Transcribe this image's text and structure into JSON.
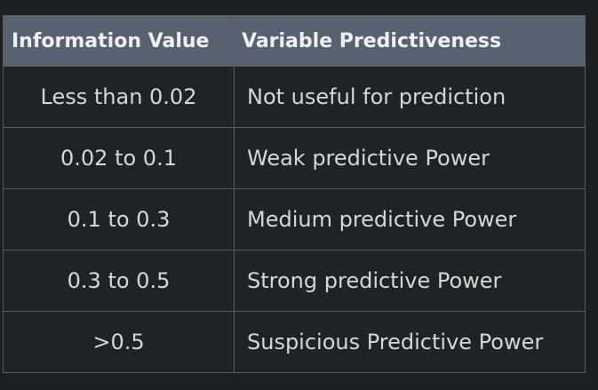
{
  "table": {
    "headers": [
      "Information Value",
      "Variable Predictiveness"
    ],
    "rows": [
      {
        "value": "Less than 0.02",
        "predictiveness": "Not useful for prediction"
      },
      {
        "value": "0.02 to 0.1",
        "predictiveness": "Weak predictive Power"
      },
      {
        "value": "0.1 to 0.3",
        "predictiveness": "Medium predictive Power"
      },
      {
        "value": "0.3 to 0.5",
        "predictiveness": "Strong predictive Power"
      },
      {
        "value": ">0.5",
        "predictiveness": "Suspicious Predictive Power"
      }
    ]
  }
}
